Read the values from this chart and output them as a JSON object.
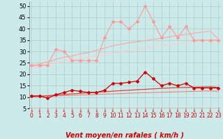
{
  "x": [
    0,
    1,
    2,
    3,
    4,
    5,
    6,
    7,
    8,
    9,
    10,
    11,
    12,
    13,
    14,
    15,
    16,
    17,
    18,
    19,
    20,
    21,
    22,
    23
  ],
  "series": [
    {
      "name": "rafales_jagged",
      "y": [
        24,
        24,
        24,
        31,
        30,
        26,
        26,
        26,
        26,
        36,
        43,
        43,
        40,
        43,
        50,
        43,
        36,
        41,
        36,
        41,
        35,
        35,
        35,
        35
      ],
      "color": "#ff9999",
      "linewidth": 0.8,
      "marker": "D",
      "markersize": 2.0,
      "zorder": 5
    },
    {
      "name": "rafales_trend_upper",
      "y": [
        23.5,
        24.5,
        25.5,
        26.5,
        27.5,
        28.0,
        29.0,
        29.5,
        30.5,
        31.5,
        32.5,
        33.2,
        33.8,
        34.3,
        34.8,
        35.3,
        35.8,
        36.5,
        37.0,
        37.5,
        38.0,
        38.5,
        39.0,
        35.5
      ],
      "color": "#ffaaaa",
      "linewidth": 0.9,
      "marker": null,
      "markersize": 0,
      "zorder": 3
    },
    {
      "name": "rafales_trend_lower",
      "y": [
        23.0,
        23.5,
        24.2,
        25.0,
        25.6,
        26.2,
        26.8,
        27.4,
        28.0,
        28.6,
        29.2,
        29.8,
        30.4,
        31.0,
        31.6,
        32.2,
        32.7,
        33.1,
        33.5,
        33.9,
        34.3,
        34.6,
        34.9,
        34.5
      ],
      "color": "#ffcccc",
      "linewidth": 0.8,
      "marker": null,
      "markersize": 0,
      "zorder": 2
    },
    {
      "name": "vent_jagged",
      "y": [
        10.5,
        10.5,
        9.5,
        11.0,
        12.0,
        13.0,
        12.5,
        12.0,
        12.0,
        13.0,
        16.0,
        16.0,
        16.5,
        17.0,
        21.0,
        18.0,
        15.0,
        16.0,
        15.0,
        16.0,
        14.0,
        14.0,
        14.0,
        14.0
      ],
      "color": "#cc0000",
      "linewidth": 0.9,
      "marker": "D",
      "markersize": 2.0,
      "zorder": 6
    },
    {
      "name": "vent_trend_upper",
      "y": [
        10.2,
        10.4,
        10.6,
        10.9,
        11.1,
        11.4,
        11.6,
        11.9,
        12.1,
        12.3,
        12.6,
        12.8,
        13.0,
        13.2,
        13.4,
        13.6,
        13.8,
        14.0,
        14.1,
        14.2,
        14.3,
        14.4,
        14.5,
        14.2
      ],
      "color": "#dd4444",
      "linewidth": 0.9,
      "marker": null,
      "markersize": 0,
      "zorder": 4
    },
    {
      "name": "vent_trend_lower",
      "y": [
        10.0,
        10.2,
        10.3,
        10.5,
        10.6,
        10.8,
        10.9,
        11.0,
        11.1,
        11.3,
        11.4,
        11.5,
        11.7,
        11.8,
        11.9,
        12.0,
        12.1,
        12.2,
        12.3,
        12.4,
        12.5,
        12.6,
        12.7,
        12.5
      ],
      "color": "#ee7777",
      "linewidth": 0.7,
      "marker": null,
      "markersize": 0,
      "zorder": 3
    }
  ],
  "xlabel": "Vent moyen/en rafales ( km/h )",
  "xlim": [
    -0.3,
    23.3
  ],
  "ylim": [
    5,
    52
  ],
  "yticks": [
    5,
    10,
    15,
    20,
    25,
    30,
    35,
    40,
    45,
    50
  ],
  "xticks": [
    0,
    1,
    2,
    3,
    4,
    5,
    6,
    7,
    8,
    9,
    10,
    11,
    12,
    13,
    14,
    15,
    16,
    17,
    18,
    19,
    20,
    21,
    22,
    23
  ],
  "bg_color": "#cdeaea",
  "grid_color": "#aacccc",
  "red_color": "#cc0000",
  "xlabel_fontsize": 7,
  "ytick_fontsize": 6,
  "xtick_fontsize": 5.5
}
